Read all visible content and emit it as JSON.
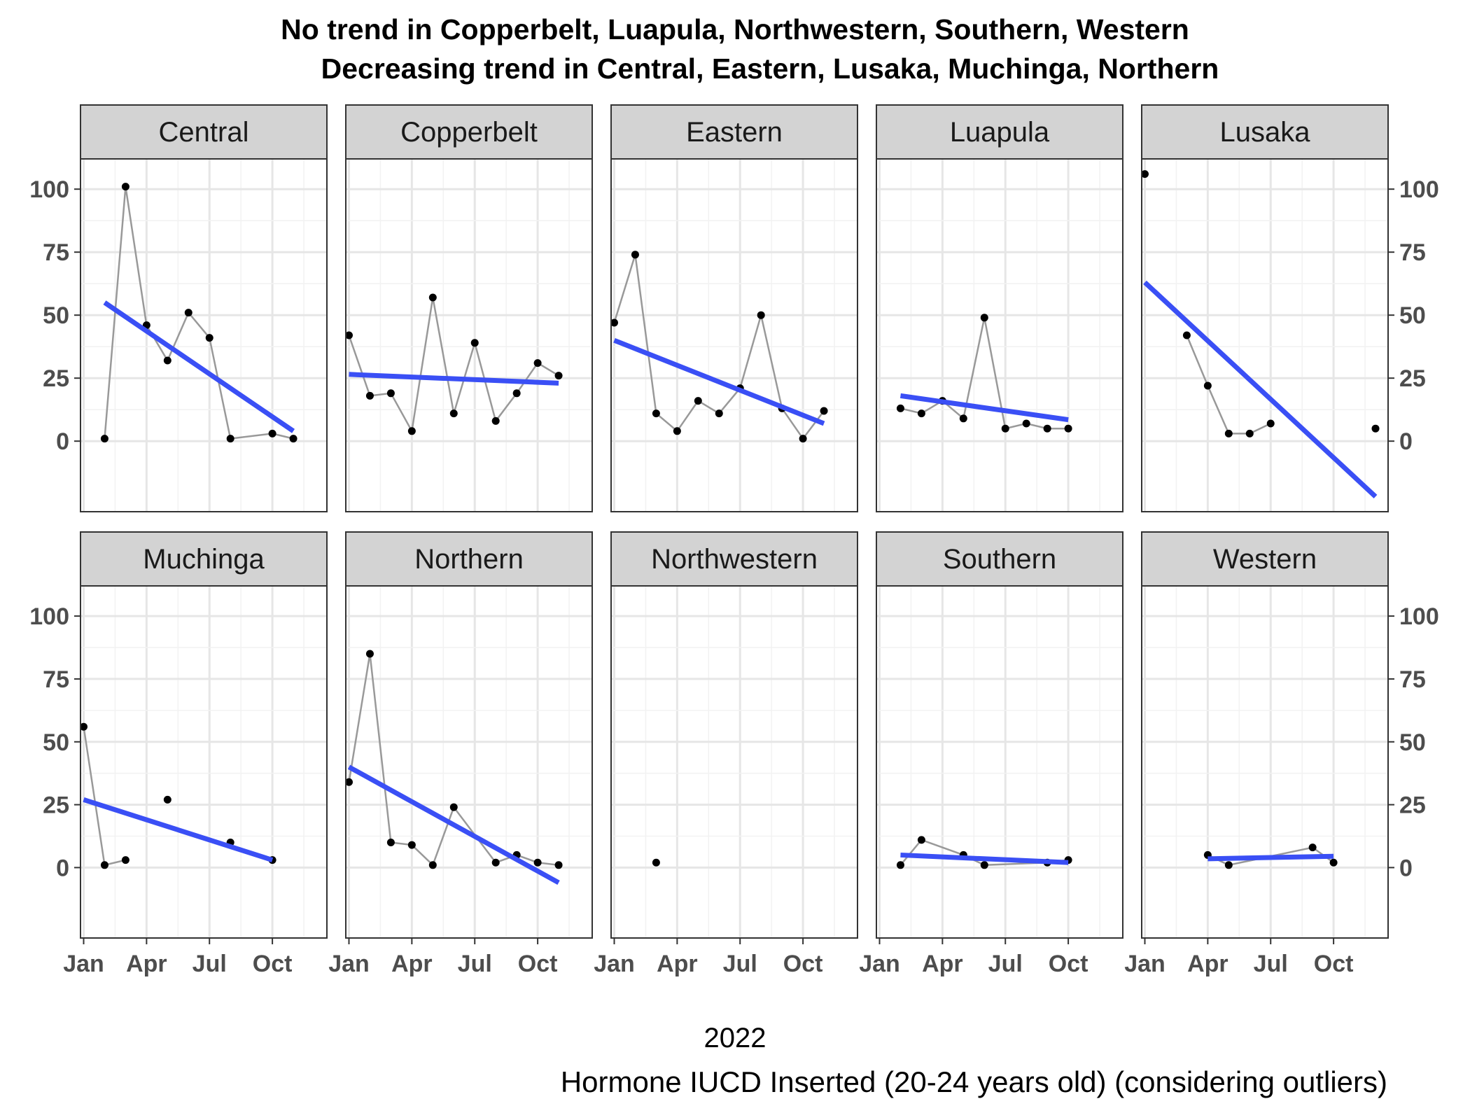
{
  "chart_data": {
    "type": "line",
    "title_lines": [
      "No trend in Copperbelt, Luapula, Northwestern, Southern, Western",
      "Decreasing trend in Central, Eastern, Lusaka, Muchinga, Northern"
    ],
    "xlabel": "2022",
    "caption": "Hormone IUCD Inserted (20-24 years old) (considering outliers)",
    "x_ticks": [
      "Jan",
      "Apr",
      "Jul",
      "Oct"
    ],
    "x_tick_months": [
      1,
      4,
      7,
      10
    ],
    "xlim_months": [
      0.85,
      12.6
    ],
    "y_ticks": [
      0,
      25,
      50,
      75,
      100
    ],
    "ylim": [
      -28,
      112
    ],
    "grid": true,
    "colors": {
      "points": "#000000",
      "line": "#999999",
      "trend": "#3a4ff5",
      "strip": "#d3d3d3"
    },
    "panels": [
      {
        "name": "Central",
        "trend": "decreasing",
        "points": [
          [
            2,
            1
          ],
          [
            3,
            101
          ],
          [
            4,
            46
          ],
          [
            5,
            32
          ],
          [
            6,
            51
          ],
          [
            7,
            41
          ],
          [
            8,
            1
          ],
          [
            10,
            3
          ],
          [
            11,
            1
          ]
        ],
        "fit": [
          [
            2,
            55
          ],
          [
            11,
            4
          ]
        ]
      },
      {
        "name": "Copperbelt",
        "trend": "none",
        "points": [
          [
            1,
            42
          ],
          [
            2,
            18
          ],
          [
            3,
            19
          ],
          [
            4,
            4
          ],
          [
            5,
            57
          ],
          [
            6,
            11
          ],
          [
            7,
            39
          ],
          [
            8,
            8
          ],
          [
            9,
            19
          ],
          [
            10,
            31
          ],
          [
            11,
            26
          ]
        ],
        "fit": [
          [
            1,
            26.5
          ],
          [
            11,
            23
          ]
        ]
      },
      {
        "name": "Eastern",
        "trend": "decreasing",
        "points": [
          [
            1,
            47
          ],
          [
            2,
            74
          ],
          [
            3,
            11
          ],
          [
            4,
            4
          ],
          [
            5,
            16
          ],
          [
            6,
            11
          ],
          [
            7,
            21
          ],
          [
            8,
            50
          ],
          [
            9,
            13
          ],
          [
            10,
            1
          ],
          [
            11,
            12
          ]
        ],
        "fit": [
          [
            1,
            40
          ],
          [
            11,
            7
          ]
        ]
      },
      {
        "name": "Luapula",
        "trend": "none",
        "points": [
          [
            2,
            13
          ],
          [
            3,
            11
          ],
          [
            4,
            16
          ],
          [
            5,
            9
          ],
          [
            6,
            49
          ],
          [
            7,
            5
          ],
          [
            8,
            7
          ],
          [
            9,
            5
          ],
          [
            10,
            5
          ]
        ],
        "fit": [
          [
            2,
            18
          ],
          [
            10,
            8.5
          ]
        ]
      },
      {
        "name": "Lusaka",
        "trend": "decreasing",
        "points": [
          [
            1,
            106
          ],
          [
            3,
            42
          ],
          [
            4,
            22
          ],
          [
            5,
            3
          ],
          [
            6,
            3
          ],
          [
            7,
            7
          ],
          [
            12,
            5
          ]
        ],
        "fit": [
          [
            1,
            63
          ],
          [
            12,
            -22
          ]
        ],
        "connect": [
          [
            3,
            42
          ],
          [
            4,
            22
          ],
          [
            5,
            3
          ],
          [
            6,
            3
          ],
          [
            7,
            7
          ]
        ]
      },
      {
        "name": "Muchinga",
        "trend": "decreasing",
        "points": [
          [
            1,
            56
          ],
          [
            2,
            1
          ],
          [
            3,
            3
          ],
          [
            5,
            27
          ],
          [
            8,
            10
          ],
          [
            10,
            3
          ]
        ],
        "fit": [
          [
            1,
            27
          ],
          [
            10,
            3
          ]
        ],
        "connect": [
          [
            1,
            56
          ],
          [
            2,
            1
          ],
          [
            3,
            3
          ]
        ]
      },
      {
        "name": "Northern",
        "trend": "decreasing",
        "points": [
          [
            1,
            34
          ],
          [
            2,
            85
          ],
          [
            3,
            10
          ],
          [
            4,
            9
          ],
          [
            5,
            1
          ],
          [
            6,
            24
          ],
          [
            8,
            2
          ],
          [
            9,
            5
          ],
          [
            10,
            2
          ],
          [
            11,
            1
          ]
        ],
        "fit": [
          [
            1,
            40
          ],
          [
            11,
            -6
          ]
        ]
      },
      {
        "name": "Northwestern",
        "trend": "none",
        "points": [
          [
            3,
            2
          ]
        ],
        "fit": []
      },
      {
        "name": "Southern",
        "trend": "none",
        "points": [
          [
            2,
            1
          ],
          [
            3,
            11
          ],
          [
            5,
            5
          ],
          [
            6,
            1
          ],
          [
            9,
            2
          ],
          [
            10,
            3
          ]
        ],
        "fit": [
          [
            2,
            5
          ],
          [
            10,
            2
          ]
        ]
      },
      {
        "name": "Western",
        "trend": "none",
        "points": [
          [
            4,
            5
          ],
          [
            5,
            1
          ],
          [
            9,
            8
          ],
          [
            10,
            2
          ]
        ],
        "fit": [
          [
            4,
            3.5
          ],
          [
            10,
            4.5
          ]
        ]
      }
    ]
  }
}
